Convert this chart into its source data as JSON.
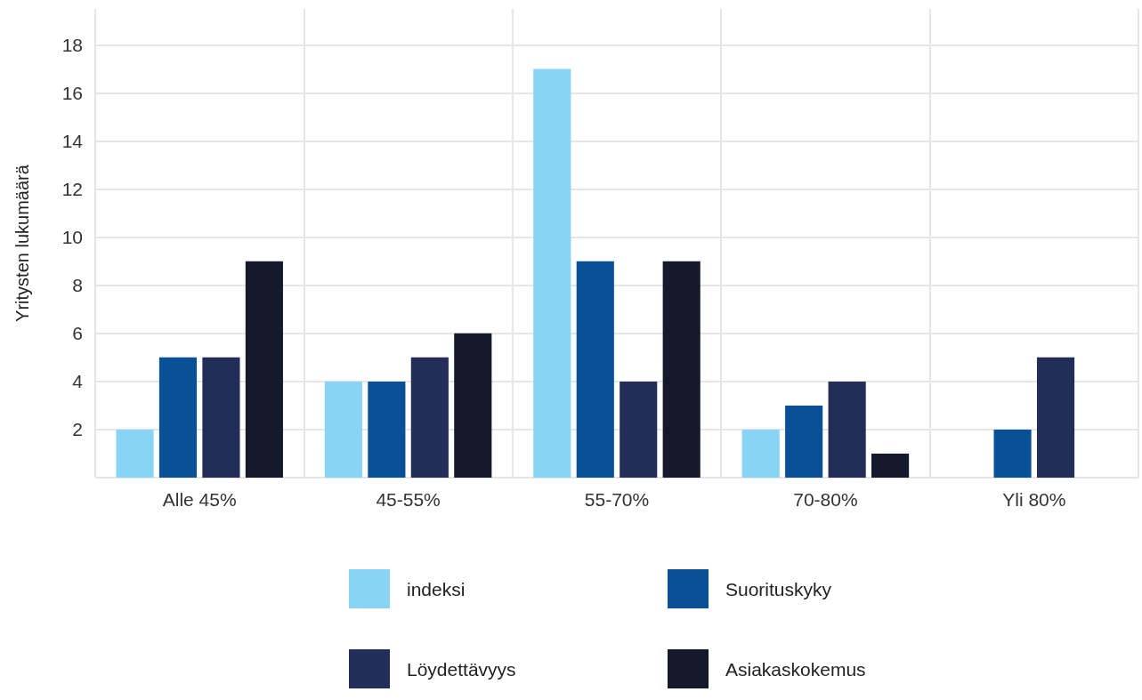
{
  "chart_data": {
    "type": "bar",
    "ylabel": "Yritysten lukumäärä",
    "categories": [
      "Alle 45%",
      "45-55%",
      "55-70%",
      "70-80%",
      "Yli 80%"
    ],
    "series": [
      {
        "name": "indeksi",
        "color": "#89d3f5",
        "values": [
          2,
          4,
          17,
          2,
          null
        ]
      },
      {
        "name": "Suorituskyky",
        "color": "#0a5096",
        "values": [
          5,
          4,
          9,
          3,
          2
        ]
      },
      {
        "name": "Löydettävyys",
        "color": "#222d58",
        "values": [
          5,
          5,
          4,
          4,
          5
        ]
      },
      {
        "name": "Asiakaskokemus",
        "color": "#141a2b",
        "values": [
          9,
          6,
          9,
          1,
          null
        ]
      }
    ],
    "ylim": [
      0,
      19.5
    ],
    "yticks": [
      {
        "value": 0,
        "label": null
      },
      2,
      4,
      6,
      8,
      10,
      12,
      14,
      16,
      18
    ],
    "grid": true,
    "legend": "bottom"
  }
}
